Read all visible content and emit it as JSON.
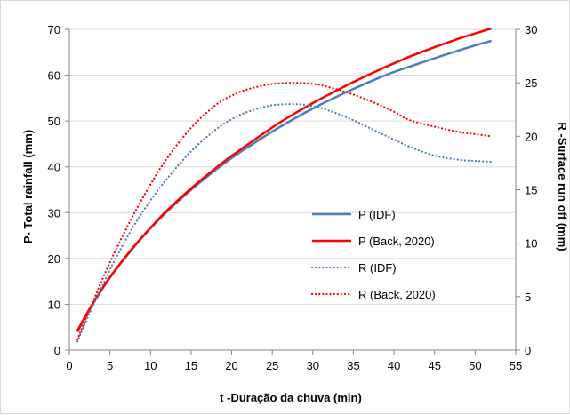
{
  "chart_data": {
    "type": "line",
    "title": "",
    "xlabel": "t -Duração da chuva (min)",
    "ylabel_left": "P- Total rainfall (mm)",
    "ylabel_right": "R -Surface run off (mm)",
    "xlim": [
      0,
      55
    ],
    "ylim_left": [
      0,
      70
    ],
    "ylim_right": [
      0,
      30
    ],
    "x_ticks": [
      0,
      5,
      10,
      15,
      20,
      25,
      30,
      35,
      40,
      45,
      50,
      55
    ],
    "y_left_ticks": [
      0,
      10,
      20,
      30,
      40,
      50,
      60,
      70
    ],
    "y_right_ticks": [
      0,
      5,
      10,
      15,
      20,
      25,
      30
    ],
    "grid": "horizontal",
    "legend_position": "center-right",
    "x": [
      1,
      2,
      3,
      4,
      5,
      6,
      8,
      10,
      12,
      15,
      18,
      20,
      22,
      25,
      28,
      30,
      32,
      35,
      38,
      40,
      42,
      45,
      48,
      50,
      52
    ],
    "series": [
      {
        "name": "P (IDF)",
        "axis": "left",
        "style": "solid",
        "color": "#4a7ebb",
        "values": [
          4.0,
          7.3,
          10.4,
          13.2,
          15.8,
          18.2,
          22.6,
          26.6,
          30.2,
          35.0,
          39.3,
          41.9,
          44.3,
          47.7,
          50.8,
          52.7,
          54.5,
          57.0,
          59.3,
          60.7,
          61.9,
          63.7,
          65.4,
          66.5,
          67.5
        ]
      },
      {
        "name": "P (Back, 2020)",
        "axis": "left",
        "style": "solid",
        "color": "#ff0000",
        "values": [
          4.2,
          7.5,
          10.5,
          13.3,
          15.9,
          18.3,
          22.7,
          26.7,
          30.4,
          35.3,
          39.7,
          42.4,
          44.9,
          48.6,
          51.9,
          53.9,
          55.8,
          58.5,
          61.0,
          62.6,
          64.1,
          66.1,
          68.0,
          69.1,
          70.2
        ]
      },
      {
        "name": "R (IDF)",
        "axis": "right",
        "style": "dotted",
        "color": "#4a7ebb",
        "values": [
          0.8,
          2.6,
          4.3,
          5.9,
          7.5,
          9.0,
          11.7,
          14.0,
          16.0,
          18.6,
          20.6,
          21.6,
          22.3,
          22.9,
          23.0,
          22.8,
          22.4,
          21.5,
          20.4,
          19.7,
          19.0,
          18.2,
          17.8,
          17.7,
          17.6
        ]
      },
      {
        "name": "R (Back, 2020)",
        "axis": "right",
        "style": "dotted",
        "color": "#ff0000",
        "values": [
          1.0,
          2.9,
          4.7,
          6.5,
          8.2,
          9.8,
          12.8,
          15.5,
          17.9,
          20.8,
          22.9,
          23.8,
          24.4,
          24.9,
          25.0,
          24.9,
          24.6,
          23.9,
          23.0,
          22.3,
          21.5,
          20.9,
          20.4,
          20.2,
          20.0
        ]
      }
    ]
  }
}
